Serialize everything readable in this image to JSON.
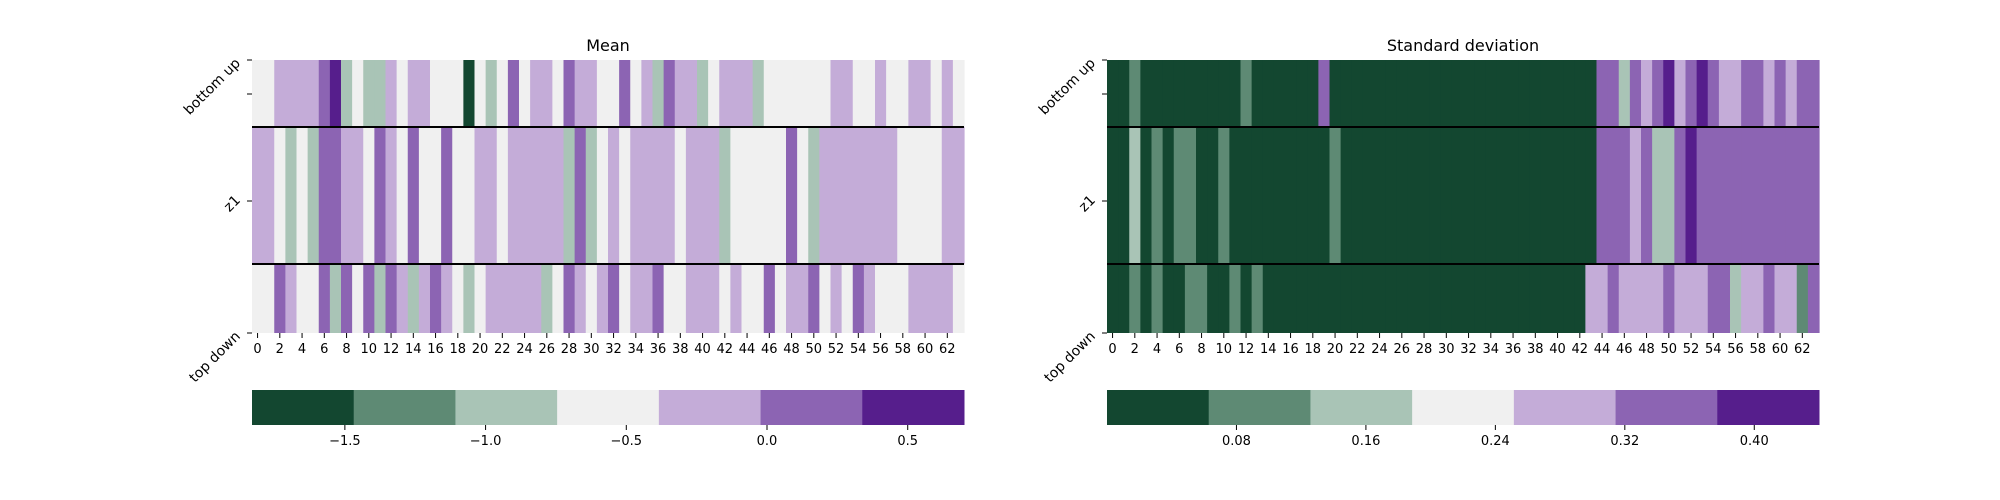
{
  "chart_data": [
    {
      "type": "heatmap",
      "title": "Mean",
      "row_labels": [
        "bottom up",
        "z1",
        "top down"
      ],
      "x_tick_labels": [
        "0",
        "2",
        "4",
        "6",
        "8",
        "10",
        "12",
        "14",
        "16",
        "18",
        "20",
        "22",
        "24",
        "26",
        "28",
        "30",
        "32",
        "34",
        "36",
        "38",
        "40",
        "42",
        "44",
        "46",
        "48",
        "50",
        "52",
        "54",
        "56",
        "58",
        "60",
        "62"
      ],
      "n_columns": 64,
      "palette": [
        "#134730",
        "#5e8a74",
        "#a9c4b6",
        "#f0f0f0",
        "#c4acd8",
        "#8c64b3",
        "#561e8c"
      ],
      "values": [
        [
          3,
          3,
          4,
          4,
          4,
          4,
          5,
          6,
          2,
          3,
          2,
          2,
          4,
          3,
          4,
          4,
          3,
          3,
          3,
          0,
          3,
          2,
          3,
          5,
          3,
          4,
          4,
          3,
          5,
          4,
          4,
          3,
          3,
          5,
          3,
          4,
          2,
          5,
          4,
          4,
          2,
          3,
          4,
          4,
          4,
          2,
          3,
          3,
          3,
          3,
          3,
          3,
          4,
          4,
          3,
          3,
          4,
          3,
          3,
          4,
          4,
          3,
          4,
          3
        ],
        [
          4,
          4,
          3,
          2,
          3,
          2,
          5,
          5,
          4,
          4,
          3,
          5,
          4,
          3,
          5,
          3,
          3,
          5,
          3,
          3,
          4,
          4,
          3,
          4,
          4,
          4,
          4,
          4,
          2,
          5,
          2,
          3,
          4,
          3,
          4,
          4,
          4,
          4,
          3,
          4,
          4,
          4,
          2,
          3,
          3,
          3,
          3,
          3,
          5,
          3,
          2,
          4,
          4,
          4,
          4,
          4,
          4,
          4,
          3,
          3,
          3,
          3,
          4,
          4
        ],
        [
          3,
          3,
          5,
          4,
          3,
          3,
          5,
          2,
          5,
          3,
          5,
          2,
          5,
          4,
          2,
          4,
          5,
          4,
          3,
          2,
          3,
          4,
          4,
          4,
          4,
          4,
          2,
          3,
          5,
          4,
          3,
          4,
          5,
          3,
          4,
          4,
          5,
          3,
          3,
          4,
          4,
          4,
          3,
          4,
          3,
          3,
          5,
          3,
          4,
          4,
          5,
          3,
          4,
          3,
          5,
          4,
          3,
          3,
          3,
          4,
          4,
          4,
          4,
          3
        ]
      ],
      "colorbar": {
        "ticks": [
          -1.5,
          -1.0,
          -0.5,
          0.0,
          0.5
        ],
        "tick_labels": [
          "−1.5",
          "−1.0",
          "−0.5",
          "0.0",
          "0.5"
        ],
        "range": [
          -1.83,
          0.7
        ]
      }
    },
    {
      "type": "heatmap",
      "title": "Standard deviation",
      "row_labels": [
        "bottom up",
        "z1",
        "top down"
      ],
      "x_tick_labels": [
        "0",
        "2",
        "4",
        "6",
        "8",
        "10",
        "12",
        "14",
        "16",
        "18",
        "20",
        "22",
        "24",
        "26",
        "28",
        "30",
        "32",
        "34",
        "36",
        "38",
        "40",
        "42",
        "44",
        "46",
        "48",
        "50",
        "52",
        "54",
        "56",
        "58",
        "60",
        "62"
      ],
      "n_columns": 64,
      "palette": [
        "#134730",
        "#5e8a74",
        "#a9c4b6",
        "#f0f0f0",
        "#c4acd8",
        "#8c64b3",
        "#561e8c"
      ],
      "values": [
        [
          0,
          0,
          1,
          0,
          0,
          0,
          0,
          0,
          0,
          0,
          0,
          0,
          1,
          0,
          0,
          0,
          0,
          0,
          0,
          5,
          0,
          0,
          0,
          0,
          0,
          0,
          0,
          0,
          0,
          0,
          0,
          0,
          0,
          0,
          0,
          0,
          0,
          0,
          0,
          0,
          0,
          0,
          0,
          0,
          5,
          5,
          2,
          5,
          4,
          5,
          6,
          4,
          5,
          6,
          5,
          4,
          4,
          5,
          5,
          4,
          5,
          4,
          5,
          5
        ],
        [
          0,
          0,
          2,
          0,
          1,
          0,
          1,
          1,
          0,
          0,
          1,
          0,
          0,
          0,
          0,
          0,
          0,
          0,
          0,
          0,
          1,
          0,
          0,
          0,
          0,
          0,
          0,
          0,
          0,
          0,
          0,
          0,
          0,
          0,
          0,
          0,
          0,
          0,
          0,
          0,
          0,
          0,
          0,
          0,
          5,
          5,
          5,
          4,
          5,
          2,
          2,
          5,
          6,
          5,
          5,
          5,
          5,
          5,
          5,
          5,
          5,
          5,
          5,
          5
        ],
        [
          0,
          0,
          1,
          0,
          1,
          0,
          0,
          1,
          1,
          0,
          0,
          1,
          0,
          1,
          0,
          0,
          0,
          0,
          0,
          0,
          0,
          0,
          0,
          0,
          0,
          0,
          0,
          0,
          0,
          0,
          0,
          0,
          0,
          0,
          0,
          0,
          0,
          0,
          0,
          0,
          0,
          0,
          0,
          4,
          4,
          5,
          4,
          4,
          4,
          4,
          5,
          4,
          4,
          4,
          5,
          5,
          2,
          4,
          4,
          5,
          4,
          4,
          1,
          5
        ]
      ],
      "colorbar": {
        "ticks": [
          0.08,
          0.16,
          0.24,
          0.32,
          0.4
        ],
        "tick_labels": [
          "0.08",
          "0.16",
          "0.24",
          "0.32",
          "0.40"
        ],
        "range": [
          0.0,
          0.44
        ]
      }
    }
  ]
}
